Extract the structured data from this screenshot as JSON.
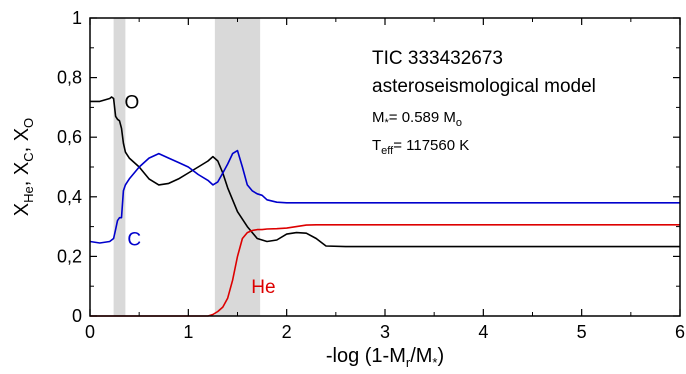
{
  "chart_data": {
    "type": "line",
    "title": "",
    "xlabel": "-log (1-M_r/M_*)",
    "ylabel": "X_He, X_C, X_O",
    "xlim": [
      0,
      6
    ],
    "ylim": [
      0,
      1
    ],
    "x_ticks": [
      0,
      1,
      2,
      3,
      4,
      5,
      6
    ],
    "x_tick_labels": [
      "0",
      "1",
      "2",
      "3",
      "4",
      "5",
      "6"
    ],
    "y_ticks": [
      0,
      0.2,
      0.4,
      0.6,
      0.8,
      1
    ],
    "y_tick_labels": [
      "0",
      "0,2",
      "0,4",
      "0,6",
      "0,8",
      "1"
    ],
    "grid": false,
    "shaded_regions": [
      {
        "x0": 0.24,
        "x1": 0.36,
        "color": "#d9d9d9"
      },
      {
        "x0": 1.27,
        "x1": 1.73,
        "color": "#d9d9d9"
      }
    ],
    "annotations": {
      "line1": "TIC 333432673",
      "line2": "asteroseismological model",
      "mass_prefix": "M",
      "mass_sub": "*",
      "mass_value": "= 0.589 M",
      "mass_unit_sub": "o",
      "teff_prefix": "T",
      "teff_sub": "eff",
      "teff_value": "= 117560 K"
    },
    "series": [
      {
        "name": "O",
        "color": "#000000",
        "x": [
          0.0,
          0.1,
          0.2,
          0.22,
          0.24,
          0.26,
          0.28,
          0.3,
          0.32,
          0.34,
          0.36,
          0.4,
          0.5,
          0.6,
          0.7,
          0.8,
          0.9,
          1.0,
          1.1,
          1.2,
          1.25,
          1.3,
          1.35,
          1.4,
          1.5,
          1.6,
          1.7,
          1.8,
          1.9,
          2.0,
          2.1,
          2.2,
          2.3,
          2.4,
          2.6,
          3.0,
          4.0,
          5.0,
          6.0
        ],
        "y": [
          0.72,
          0.72,
          0.73,
          0.735,
          0.73,
          0.67,
          0.66,
          0.655,
          0.63,
          0.58,
          0.55,
          0.53,
          0.5,
          0.46,
          0.44,
          0.445,
          0.46,
          0.48,
          0.5,
          0.52,
          0.535,
          0.52,
          0.48,
          0.43,
          0.35,
          0.3,
          0.26,
          0.25,
          0.255,
          0.275,
          0.28,
          0.278,
          0.26,
          0.235,
          0.233,
          0.233,
          0.233,
          0.233,
          0.233
        ]
      },
      {
        "name": "C",
        "color": "#0000cc",
        "x": [
          0.0,
          0.1,
          0.2,
          0.24,
          0.26,
          0.28,
          0.3,
          0.32,
          0.34,
          0.36,
          0.4,
          0.5,
          0.6,
          0.7,
          0.8,
          0.9,
          1.0,
          1.1,
          1.2,
          1.25,
          1.3,
          1.35,
          1.4,
          1.45,
          1.5,
          1.55,
          1.6,
          1.65,
          1.7,
          1.75,
          1.8,
          1.9,
          2.0,
          2.2,
          2.5,
          3.0,
          4.0,
          5.0,
          6.0
        ],
        "y": [
          0.25,
          0.245,
          0.25,
          0.26,
          0.29,
          0.32,
          0.33,
          0.33,
          0.42,
          0.44,
          0.46,
          0.5,
          0.53,
          0.545,
          0.53,
          0.515,
          0.5,
          0.475,
          0.455,
          0.44,
          0.45,
          0.48,
          0.51,
          0.545,
          0.555,
          0.5,
          0.44,
          0.42,
          0.41,
          0.405,
          0.39,
          0.382,
          0.38,
          0.38,
          0.38,
          0.38,
          0.38,
          0.38,
          0.38
        ]
      },
      {
        "name": "He",
        "color": "#dd0000",
        "x": [
          0.0,
          1.2,
          1.25,
          1.3,
          1.35,
          1.4,
          1.45,
          1.5,
          1.55,
          1.6,
          1.65,
          1.7,
          1.75,
          1.8,
          1.9,
          2.0,
          2.1,
          2.2,
          2.3,
          2.5,
          3.0,
          4.0,
          5.0,
          6.0
        ],
        "y": [
          0.0,
          0.0,
          0.005,
          0.015,
          0.03,
          0.06,
          0.12,
          0.2,
          0.26,
          0.28,
          0.287,
          0.29,
          0.29,
          0.292,
          0.293,
          0.295,
          0.3,
          0.305,
          0.306,
          0.306,
          0.306,
          0.306,
          0.306,
          0.306
        ]
      }
    ],
    "series_labels": [
      {
        "series": "O",
        "text": "O",
        "x": 0.33,
        "y": 0.72
      },
      {
        "series": "C",
        "text": "C",
        "x": 0.36,
        "y": 0.26
      },
      {
        "series": "He",
        "text": "He",
        "x": 1.62,
        "y": 0.1
      }
    ]
  }
}
